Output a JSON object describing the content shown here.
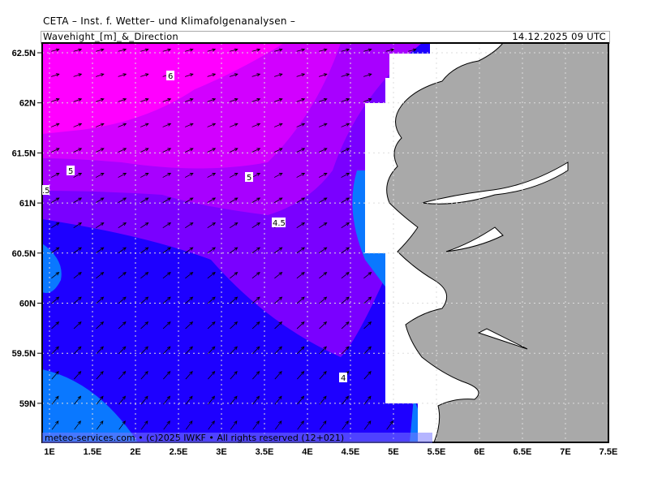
{
  "header": {
    "title": "CETA – Inst. f. Wetter– und Klimafolgenanalysen –",
    "subtitle": "Wavehight_[m]_&_Direction",
    "datetime": "14.12.2025 09 UTC"
  },
  "map": {
    "variable": "significant wave height [m] with direction arrows",
    "lon_range": [
      0.92,
      7.5
    ],
    "lat_range": [
      58.6,
      62.6
    ],
    "lat_ticks": [
      "62.5N",
      "62N",
      "61.5N",
      "61N",
      "60.5N",
      "60N",
      "59.5N",
      "59N"
    ],
    "lon_ticks": [
      "1E",
      "1.5E",
      "2E",
      "2.5E",
      "3E",
      "3.5E",
      "4E",
      "4.5E",
      "5E",
      "5.5E",
      "6E",
      "6.5E",
      "7E",
      "7.5E"
    ],
    "contour_labels": [
      "6",
      "5",
      "5",
      "4.5",
      "4",
      ".5"
    ],
    "colors": {
      "ge6": "#ff00ff",
      "5.5": "#d200ff",
      "5": "#a800ff",
      "4.5": "#7a00ff",
      "4": "#1e00ff",
      "3.5": "#0a78ff",
      "3": "#00a0ff",
      "land": "#a9a9a9",
      "mask": "#ffffff"
    }
  },
  "footer": {
    "credit": "meteo-services.com • (c)2025 IWKF • All rights reserved (12+021)"
  }
}
